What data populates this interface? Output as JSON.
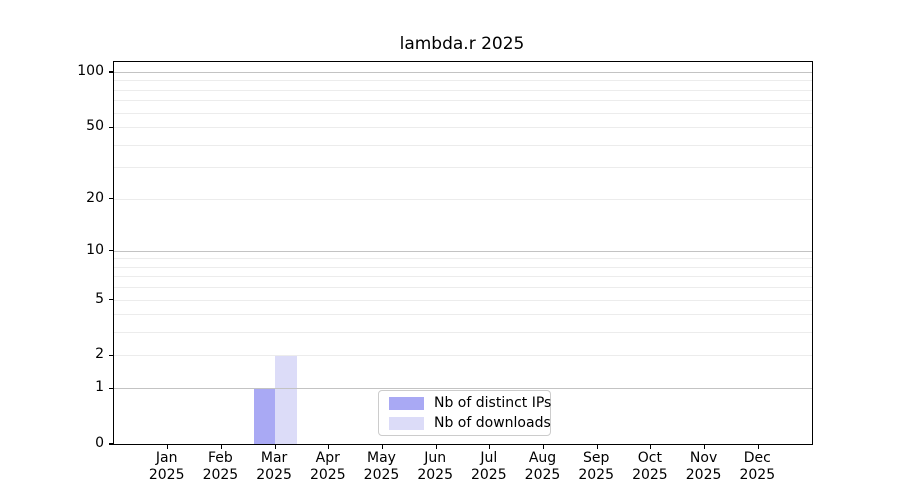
{
  "chart_data": {
    "type": "bar",
    "title": "lambda.r 2025",
    "scale": "log1p",
    "categories": [
      "Jan",
      "Feb",
      "Mar",
      "Apr",
      "May",
      "Jun",
      "Jul",
      "Aug",
      "Sep",
      "Oct",
      "Nov",
      "Dec"
    ],
    "year": "2025",
    "y_ticks": [
      0,
      1,
      2,
      5,
      10,
      20,
      50,
      100
    ],
    "ylim": [
      0,
      100
    ],
    "grid": {
      "major": [
        1,
        10,
        100
      ],
      "minor": [
        2,
        3,
        4,
        5,
        6,
        7,
        8,
        9,
        20,
        30,
        40,
        50,
        60,
        70,
        80,
        90
      ]
    },
    "series": [
      {
        "name": "Nb of distinct IPs",
        "color": "#a9a9f4",
        "values": [
          0,
          0,
          1,
          0,
          0,
          0,
          0,
          0,
          0,
          0,
          0,
          0
        ]
      },
      {
        "name": "Nb of downloads",
        "color": "#dcdcf8",
        "values": [
          0,
          0,
          2,
          0,
          0,
          0,
          0,
          0,
          0,
          0,
          0,
          0
        ]
      }
    ],
    "legend_position": "bottom-center",
    "grid_on": true
  }
}
